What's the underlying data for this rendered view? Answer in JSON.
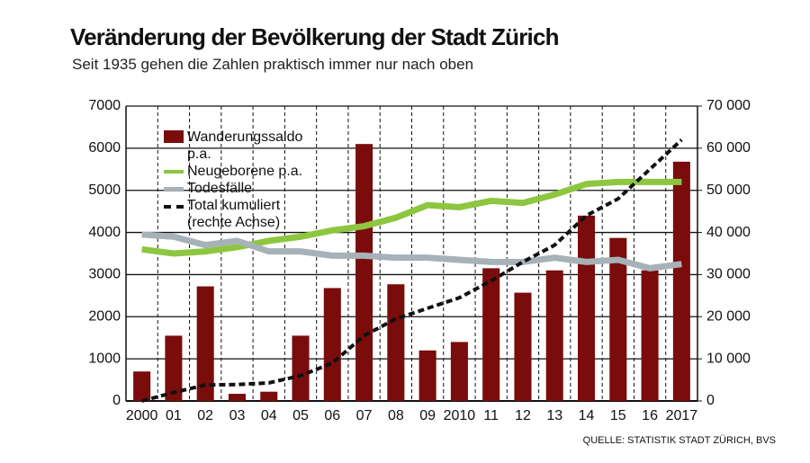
{
  "title": "Veränderung der Bevölkerung der Stadt Zürich",
  "subtitle": "Seit 1935 gehen die Zahlen praktisch immer nur nach oben",
  "source": "QUELLE: STATISTIK STADT ZÜRICH, BVS",
  "chart_data": {
    "type": "bar",
    "categories": [
      "2000",
      "01",
      "02",
      "03",
      "04",
      "05",
      "06",
      "07",
      "08",
      "09",
      "2010",
      "11",
      "12",
      "13",
      "14",
      "15",
      "16",
      "2017"
    ],
    "series": [
      {
        "name": "Wanderungssaldo p.a.",
        "color": "#7a0c0c",
        "type": "bar",
        "values": [
          700,
          1550,
          2720,
          170,
          220,
          1550,
          2680,
          6100,
          2770,
          1200,
          1400,
          3150,
          2570,
          3100,
          4400,
          3870,
          3100,
          5680
        ]
      },
      {
        "name": "Neugeborene p.a.",
        "color": "#8dc63f",
        "type": "line",
        "values": [
          3600,
          3500,
          3550,
          3650,
          3800,
          3900,
          4050,
          4150,
          4350,
          4650,
          4600,
          4750,
          4700,
          4900,
          5150,
          5200,
          5200,
          5200
        ]
      },
      {
        "name": "Todesfälle",
        "color": "#a7b1b8",
        "type": "line",
        "values": [
          3950,
          3900,
          3700,
          3800,
          3550,
          3550,
          3450,
          3450,
          3400,
          3400,
          3350,
          3300,
          3300,
          3400,
          3300,
          3350,
          3150,
          3250
        ]
      },
      {
        "name": "Total kumuliert (rechte Achse)",
        "color": "#111111",
        "type": "dashed-line",
        "axis": "y2",
        "values": [
          0,
          2000,
          3800,
          3900,
          4300,
          6000,
          9000,
          15500,
          19500,
          22000,
          24500,
          28500,
          33000,
          37000,
          44000,
          48000,
          55000,
          62000
        ]
      }
    ],
    "ylim": [
      0,
      7000
    ],
    "yticks": [
      0,
      1000,
      2000,
      3000,
      4000,
      5000,
      6000,
      7000
    ],
    "y2lim": [
      0,
      70000
    ],
    "y2ticks": [
      0,
      {
        "value": 10000,
        "label": "10 000"
      },
      {
        "value": 20000,
        "label": "20 000"
      },
      {
        "value": 30000,
        "label": "30 000"
      },
      {
        "value": 40000,
        "label": "40 000"
      },
      {
        "value": 50000,
        "label": "50 000"
      },
      {
        "value": 60000,
        "label": "60 000"
      },
      {
        "value": 70000,
        "label": "70 000"
      }
    ],
    "grid": true
  }
}
